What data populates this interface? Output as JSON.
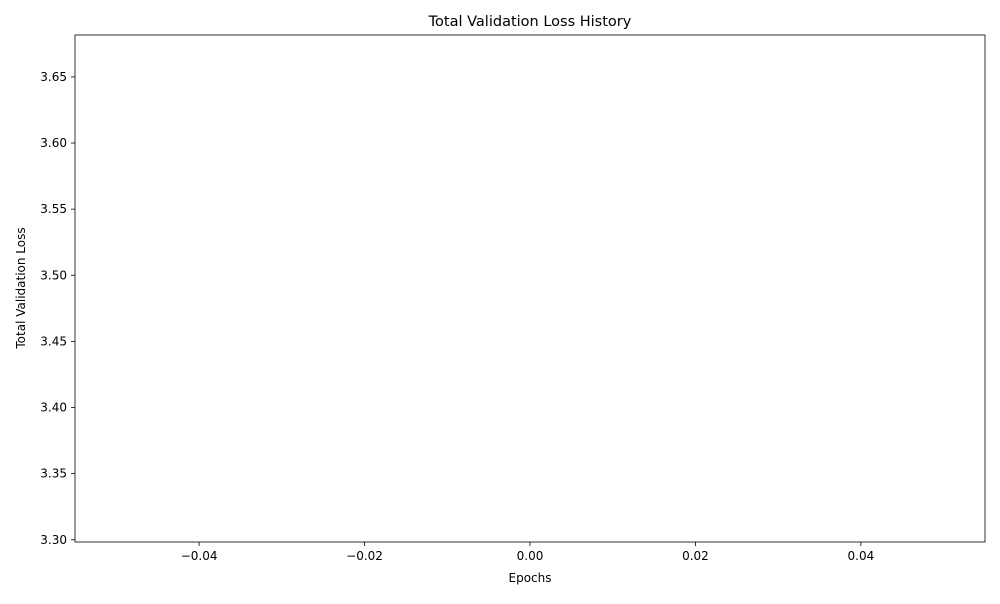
{
  "chart_data": {
    "type": "line",
    "title": "Total Validation Loss History",
    "xlabel": "Epochs",
    "ylabel": "Total Validation Loss",
    "xlim": [
      -0.055,
      0.055
    ],
    "ylim": [
      3.2983,
      3.6817
    ],
    "x_ticks": [
      -0.04,
      -0.02,
      0.0,
      0.02,
      0.04
    ],
    "x_tick_labels": [
      "−0.04",
      "−0.02",
      "0.00",
      "0.02",
      "0.04"
    ],
    "y_ticks": [
      3.3,
      3.35,
      3.4,
      3.45,
      3.5,
      3.55,
      3.6,
      3.65
    ],
    "y_tick_labels": [
      "3.30",
      "3.35",
      "3.40",
      "3.45",
      "3.50",
      "3.55",
      "3.60",
      "3.65"
    ],
    "series": [
      {
        "values": [],
        "color": "#1f77b4"
      }
    ],
    "grid": false,
    "legend": "none"
  }
}
